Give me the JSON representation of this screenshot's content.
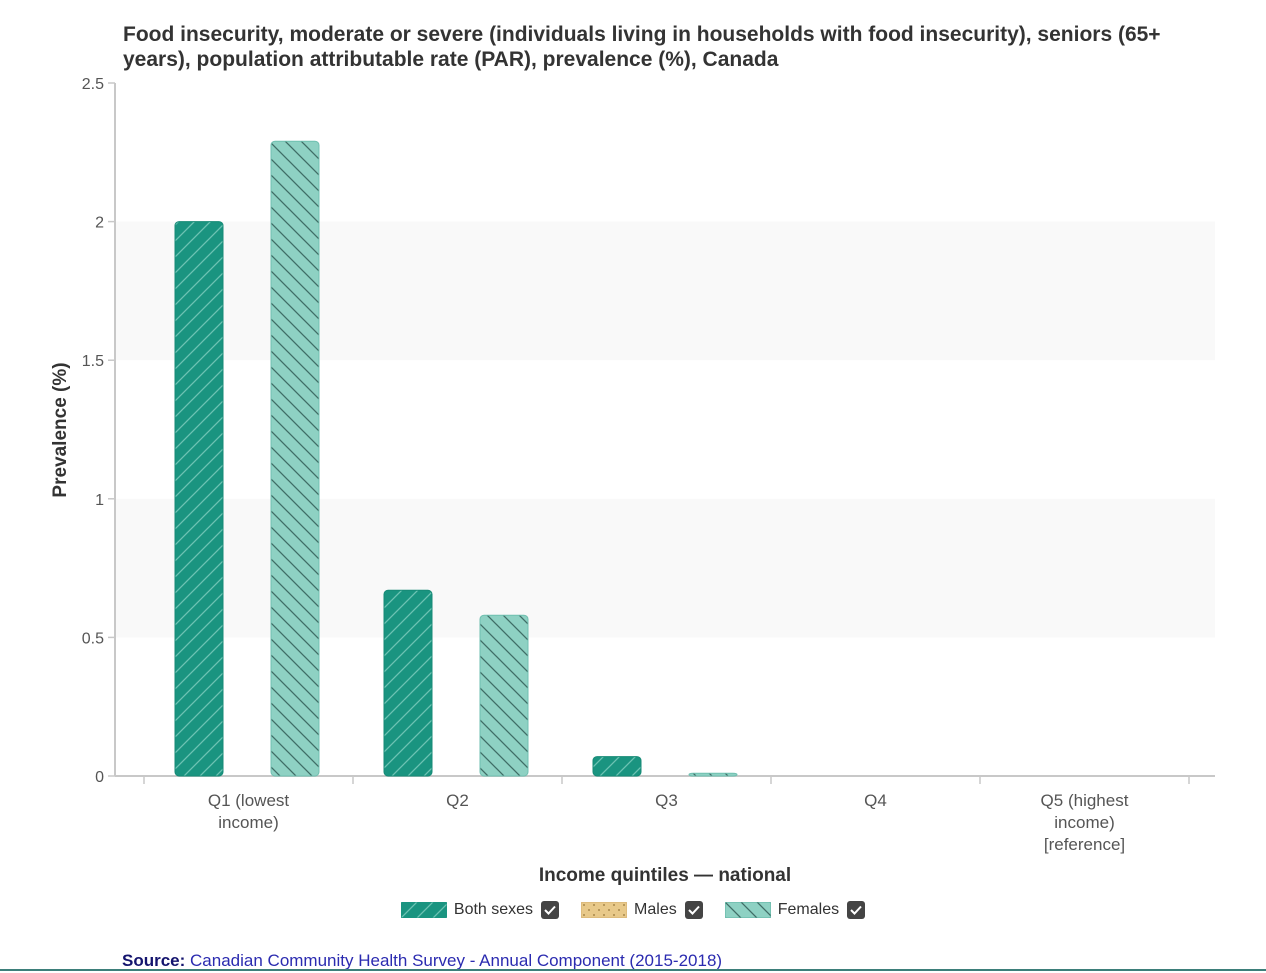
{
  "chart_data": {
    "type": "bar",
    "title": "Food insecurity, moderate or severe (individuals living in households with food insecurity), seniors (65+ years), population attributable rate (PAR), prevalence (%), Canada",
    "xlabel": "Income quintiles — national",
    "ylabel": "Prevalence (%)",
    "ylim": [
      0,
      2.5
    ],
    "yticks": [
      "0",
      "0.5",
      "1",
      "1.5",
      "2",
      "2.5"
    ],
    "categories": [
      [
        "Q1 (lowest",
        "income)"
      ],
      [
        "Q2"
      ],
      [
        "Q3"
      ],
      [
        "Q4"
      ],
      [
        "Q5 (highest",
        "income)",
        "[reference]"
      ]
    ],
    "series": [
      {
        "name": "Both sexes",
        "values": [
          2.0,
          0.67,
          0.07,
          0,
          0
        ],
        "color": "#1a9480",
        "pattern": "diagonal-up"
      },
      {
        "name": "Males",
        "values": [
          null,
          null,
          null,
          null,
          null
        ],
        "color": "#e8c98a",
        "pattern": "dots"
      },
      {
        "name": "Females",
        "values": [
          2.29,
          0.58,
          0.01,
          0,
          0
        ],
        "color": "#8ed1c3",
        "pattern": "diagonal-down"
      }
    ],
    "grid": "alternating bands",
    "legend_position": "bottom-center"
  },
  "source": {
    "label": "Source:",
    "text": "Canadian Community Health Survey - Annual Component (2015-2018)"
  }
}
